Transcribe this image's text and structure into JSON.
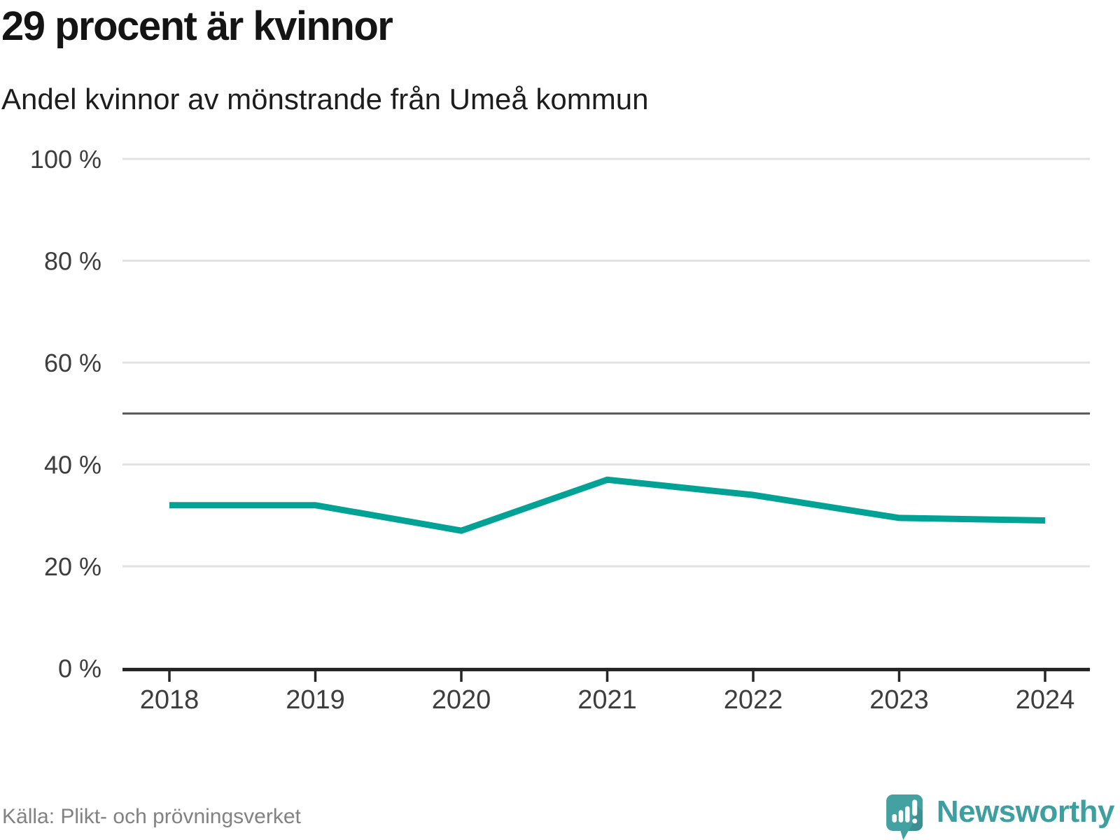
{
  "chart_data": {
    "type": "line",
    "title": "29 procent är kvinnor",
    "subtitle": "Andel kvinnor av mönstrande från Umeå kommun",
    "categories": [
      "2018",
      "2019",
      "2020",
      "2021",
      "2022",
      "2023",
      "2024"
    ],
    "series": [
      {
        "name": "Andel kvinnor av mönstrande",
        "color": "#00a296",
        "values": [
          32,
          32,
          27,
          37,
          34,
          29.5,
          29
        ]
      }
    ],
    "unit": "%",
    "ylim": [
      0,
      100
    ],
    "yticks": [
      {
        "value": 0,
        "label": "0 %"
      },
      {
        "value": 20,
        "label": "20 %"
      },
      {
        "value": 40,
        "label": "40 %"
      },
      {
        "value": 60,
        "label": "60 %"
      },
      {
        "value": 80,
        "label": "80 %"
      },
      {
        "value": 100,
        "label": "100 %"
      }
    ],
    "reference_line": {
      "value": 50
    },
    "grid": "horizontal",
    "legend": "none"
  },
  "footer": {
    "source": "Källa: Plikt- och prövningsverket",
    "brand": "Newsworthy",
    "brand_color": "#429fa0"
  }
}
